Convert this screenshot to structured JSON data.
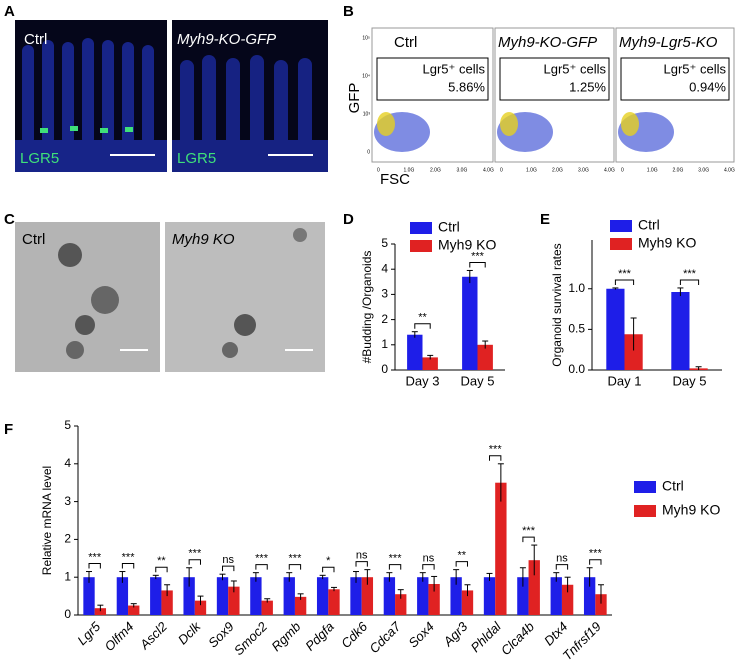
{
  "figure": {
    "panel_labels": [
      "A",
      "B",
      "C",
      "D",
      "E",
      "F"
    ],
    "panel_a": {
      "labels": [
        "Ctrl",
        "Myh9-KO-GFP"
      ],
      "stain": "LGR5"
    },
    "panel_b": {
      "labels": [
        "Ctrl",
        "Myh9-KO-GFP",
        "Myh9-Lgr5-KO"
      ],
      "gate_label": "Lgr5⁺ cells",
      "percentages": [
        "5.86%",
        "1.25%",
        "0.94%"
      ],
      "y_label": "GFP",
      "x_label": "FSC",
      "xticks": [
        "0",
        "1.0G",
        "2.0G",
        "3.0G",
        "4.0G"
      ],
      "yticks": [
        "10⁵",
        "10⁴",
        "10³",
        "0"
      ]
    },
    "panel_c": {
      "labels": [
        "Ctrl",
        "Myh9 KO"
      ]
    }
  },
  "chart_data": [
    {
      "type": "bar",
      "y_label": "#Budding /Organoids",
      "categories": [
        "Day 3",
        "Day 5"
      ],
      "series": [
        {
          "name": "Ctrl",
          "color": "#1e1ee8",
          "values": [
            1.4,
            3.7
          ],
          "errors": [
            0.12,
            0.25
          ]
        },
        {
          "name": "Myh9 KO",
          "color": "#e02222",
          "values": [
            0.5,
            1.0
          ],
          "errors": [
            0.08,
            0.15
          ]
        }
      ],
      "significance": [
        "**",
        "***"
      ],
      "ylim": [
        0,
        5
      ],
      "yticks": [
        0,
        1,
        2,
        3,
        4,
        5
      ]
    },
    {
      "type": "bar",
      "y_label": "Organoid survival rates",
      "categories": [
        "Day 1",
        "Day 5"
      ],
      "series": [
        {
          "name": "Ctrl",
          "color": "#1e1ee8",
          "values": [
            1.0,
            0.96
          ],
          "errors": [
            0.01,
            0.05
          ]
        },
        {
          "name": "Myh9 KO",
          "color": "#e02222",
          "values": [
            0.44,
            0.02
          ],
          "errors": [
            0.2,
            0.02
          ]
        }
      ],
      "significance": [
        "***",
        "***"
      ],
      "ylim": [
        0,
        1.6
      ],
      "yticks": [
        {
          "value": 0,
          "label": "0.0"
        },
        {
          "value": 0.5,
          "label": "0.5"
        },
        {
          "value": 1,
          "label": "1.0"
        }
      ]
    },
    {
      "type": "bar",
      "y_label": "Relative mRNA level",
      "categories": [
        "Lgr5",
        "Olfm4",
        "Ascl2",
        "Dclk",
        "Sox9",
        "Smoc2",
        "Rgmb",
        "Pdgfa",
        "Cdk6",
        "Cdca7",
        "Sox4",
        "Agr3",
        "Phldal",
        "Clca4b",
        "Dtx4",
        "Tnfrsf19"
      ],
      "series": [
        {
          "name": "Ctrl",
          "color": "#1e1ee8",
          "values": [
            1.0,
            1.0,
            1.0,
            1.0,
            1.0,
            1.0,
            1.0,
            1.0,
            1.0,
            1.0,
            1.0,
            1.0,
            1.0,
            1.0,
            1.0,
            1.0
          ],
          "errors": [
            0.15,
            0.15,
            0.05,
            0.25,
            0.08,
            0.12,
            0.12,
            0.05,
            0.15,
            0.12,
            0.12,
            0.2,
            0.1,
            0.25,
            0.12,
            0.25
          ]
        },
        {
          "name": "Myh9 KO",
          "color": "#e02222",
          "values": [
            0.18,
            0.25,
            0.65,
            0.38,
            0.75,
            0.38,
            0.48,
            0.68,
            1.0,
            0.55,
            0.82,
            0.65,
            3.5,
            1.45,
            0.8,
            0.55
          ],
          "errors": [
            0.08,
            0.05,
            0.15,
            0.12,
            0.15,
            0.05,
            0.08,
            0.05,
            0.2,
            0.12,
            0.2,
            0.15,
            0.5,
            0.4,
            0.2,
            0.25
          ]
        }
      ],
      "significance": [
        "***",
        "***",
        "**",
        "***",
        "ns",
        "***",
        "***",
        "*",
        "ns",
        "***",
        "ns",
        "**",
        "***",
        "***",
        "ns",
        "***"
      ],
      "ylim": [
        0,
        5
      ],
      "yticks": [
        0,
        1,
        2,
        3,
        4,
        5
      ]
    }
  ]
}
